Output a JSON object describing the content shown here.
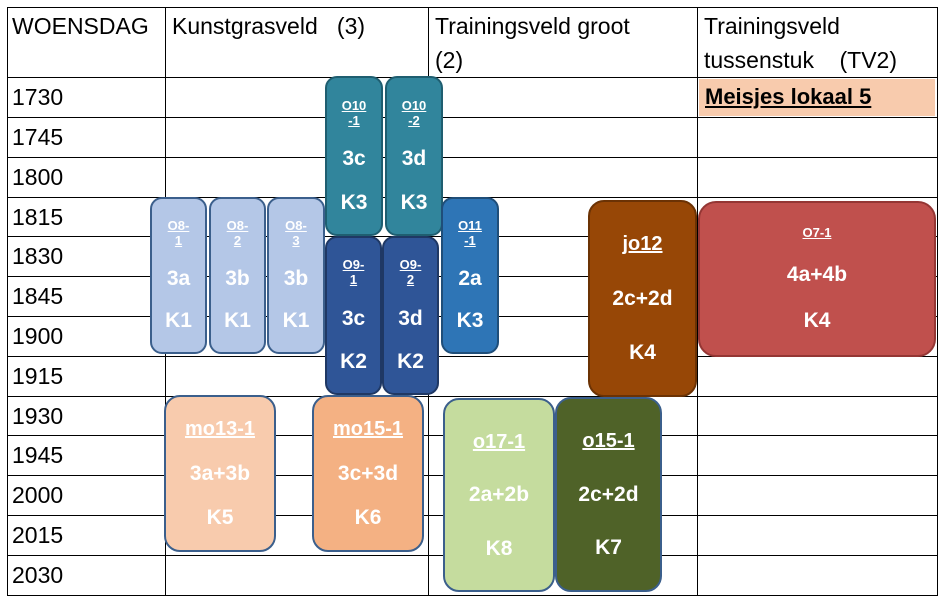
{
  "header": {
    "day": "WOENSDAG",
    "col1": "Kunstgrasveld   (3)",
    "col2_line1": "Trainingsveld groot",
    "col2_line2": "(2)",
    "col3_line1": "Trainingsveld",
    "col3_line2": "tussenstuk    (TV2)"
  },
  "times": [
    "1730",
    "1745",
    "1800",
    "1815",
    "1830",
    "1845",
    "1900",
    "1915",
    "1930",
    "1945",
    "2000",
    "2015",
    "2030"
  ],
  "lokaal": "Meisjes lokaal 5",
  "colors": {
    "light_blue": "#b4c7e7",
    "teal": "#31859c",
    "dark_blue": "#2f5597",
    "mid_blue": "#2e75b6",
    "brown": "#974706",
    "red": "#c0504d",
    "peach_light": "#f8cbad",
    "peach": "#f4b183",
    "light_green": "#c5dc9e",
    "dark_green": "#4f6228"
  },
  "blocks": {
    "o8_1": {
      "team": "O8-\n1",
      "field": "3a",
      "room": "K1"
    },
    "o8_2": {
      "team": "O8-\n2",
      "field": "3b",
      "room": "K1"
    },
    "o8_3": {
      "team": "O8-\n3",
      "field": "3b",
      "room": "K1"
    },
    "o10_1": {
      "team": "O10\n-1",
      "field": "3c",
      "room": "K3"
    },
    "o10_2": {
      "team": "O10\n-2",
      "field": "3d",
      "room": "K3"
    },
    "o9_1": {
      "team": "O9-\n1",
      "field": "3c",
      "room": "K2"
    },
    "o9_2": {
      "team": "O9-\n2",
      "field": "3d",
      "room": "K2"
    },
    "o11_1": {
      "team": "O11\n-1",
      "field": "2a",
      "room": "K3"
    },
    "jo12": {
      "team": "jo12",
      "field": "2c+2d",
      "room": "K4"
    },
    "o7_1": {
      "team": "O7-1",
      "field": "4a+4b",
      "room": "K4"
    },
    "mo13_1": {
      "team": "mo13-1",
      "field": "3a+3b",
      "room": "K5"
    },
    "mo15_1": {
      "team": "mo15-1",
      "field": "3c+3d",
      "room": "K6"
    },
    "o17_1": {
      "team": "o17-1",
      "field": "2a+2b",
      "room": "K8"
    },
    "o15_1": {
      "team": "o15-1",
      "field": "2c+2d",
      "room": "K7"
    }
  }
}
